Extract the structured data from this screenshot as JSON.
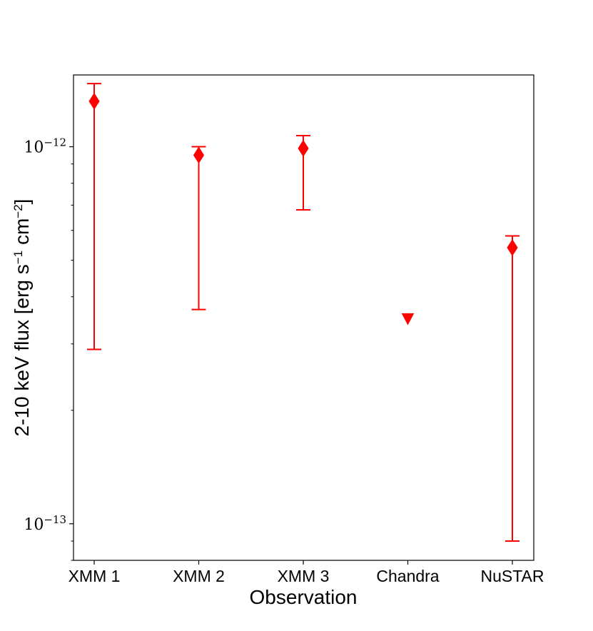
{
  "chart_data": {
    "type": "scatter",
    "title": "",
    "xlabel": "Observation",
    "ylabel": {
      "prefix": "2-10 keV flux [erg s",
      "sup1": "−1",
      "middle": " cm",
      "sup2": "−2",
      "suffix": "]"
    },
    "yscale": "log",
    "ylim": [
      8e-14,
      1.55e-12
    ],
    "yticks": [
      {
        "value": 1e-12,
        "base": "10",
        "exp": "−12"
      },
      {
        "value": 1e-13,
        "base": "10",
        "exp": "−13"
      }
    ],
    "grid": false,
    "legend": "none",
    "color": "#ff0000",
    "categories": [
      "XMM 1",
      "XMM 2",
      "XMM 3",
      "Chandra",
      "NuSTAR"
    ],
    "points": [
      {
        "name": "XMM 1",
        "y": 1.32e-12,
        "err_low": 2.9e-13,
        "err_high": 1.47e-12,
        "marker": "diamond"
      },
      {
        "name": "XMM 2",
        "y": 9.5e-13,
        "err_low": 3.7e-13,
        "err_high": 1e-12,
        "marker": "diamond"
      },
      {
        "name": "XMM 3",
        "y": 9.9e-13,
        "err_low": 6.8e-13,
        "err_high": 1.07e-12,
        "marker": "diamond"
      },
      {
        "name": "Chandra",
        "y": 3.5e-13,
        "marker": "triangle-down",
        "upper_limit": true
      },
      {
        "name": "NuSTAR",
        "y": 5.4e-13,
        "err_low": 9e-14,
        "err_high": 5.8e-13,
        "marker": "diamond"
      }
    ]
  }
}
